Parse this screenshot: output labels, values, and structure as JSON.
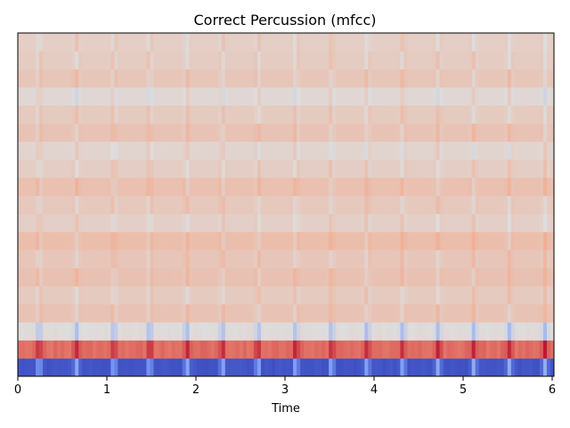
{
  "chart_data": {
    "type": "heatmap",
    "title": "Correct Percussion (mfcc)",
    "xlabel": "Time",
    "ylabel": "",
    "xlim": [
      0,
      6.02
    ],
    "x_ticks": [
      0,
      1,
      2,
      3,
      4,
      5,
      6
    ],
    "x_tick_labels": [
      "0",
      "1",
      "2",
      "3",
      "4",
      "5",
      "6"
    ],
    "y_ticks_visible": false,
    "colormap": "coolwarm",
    "color_range": [
      -1,
      1
    ],
    "n_coefficients": 19,
    "onset_times": [
      0.24,
      0.66,
      1.08,
      1.48,
      1.9,
      2.3,
      2.7,
      3.12,
      3.52,
      3.92,
      4.32,
      4.72,
      5.12,
      5.52,
      5.92
    ],
    "coefficient_levels": [
      -0.95,
      0.72,
      0.02,
      0.22,
      0.16,
      0.24,
      0.2,
      0.27,
      0.12,
      0.18,
      0.25,
      0.14,
      0.08,
      0.22,
      0.16,
      0.05,
      0.2,
      0.15,
      0.13
    ]
  }
}
